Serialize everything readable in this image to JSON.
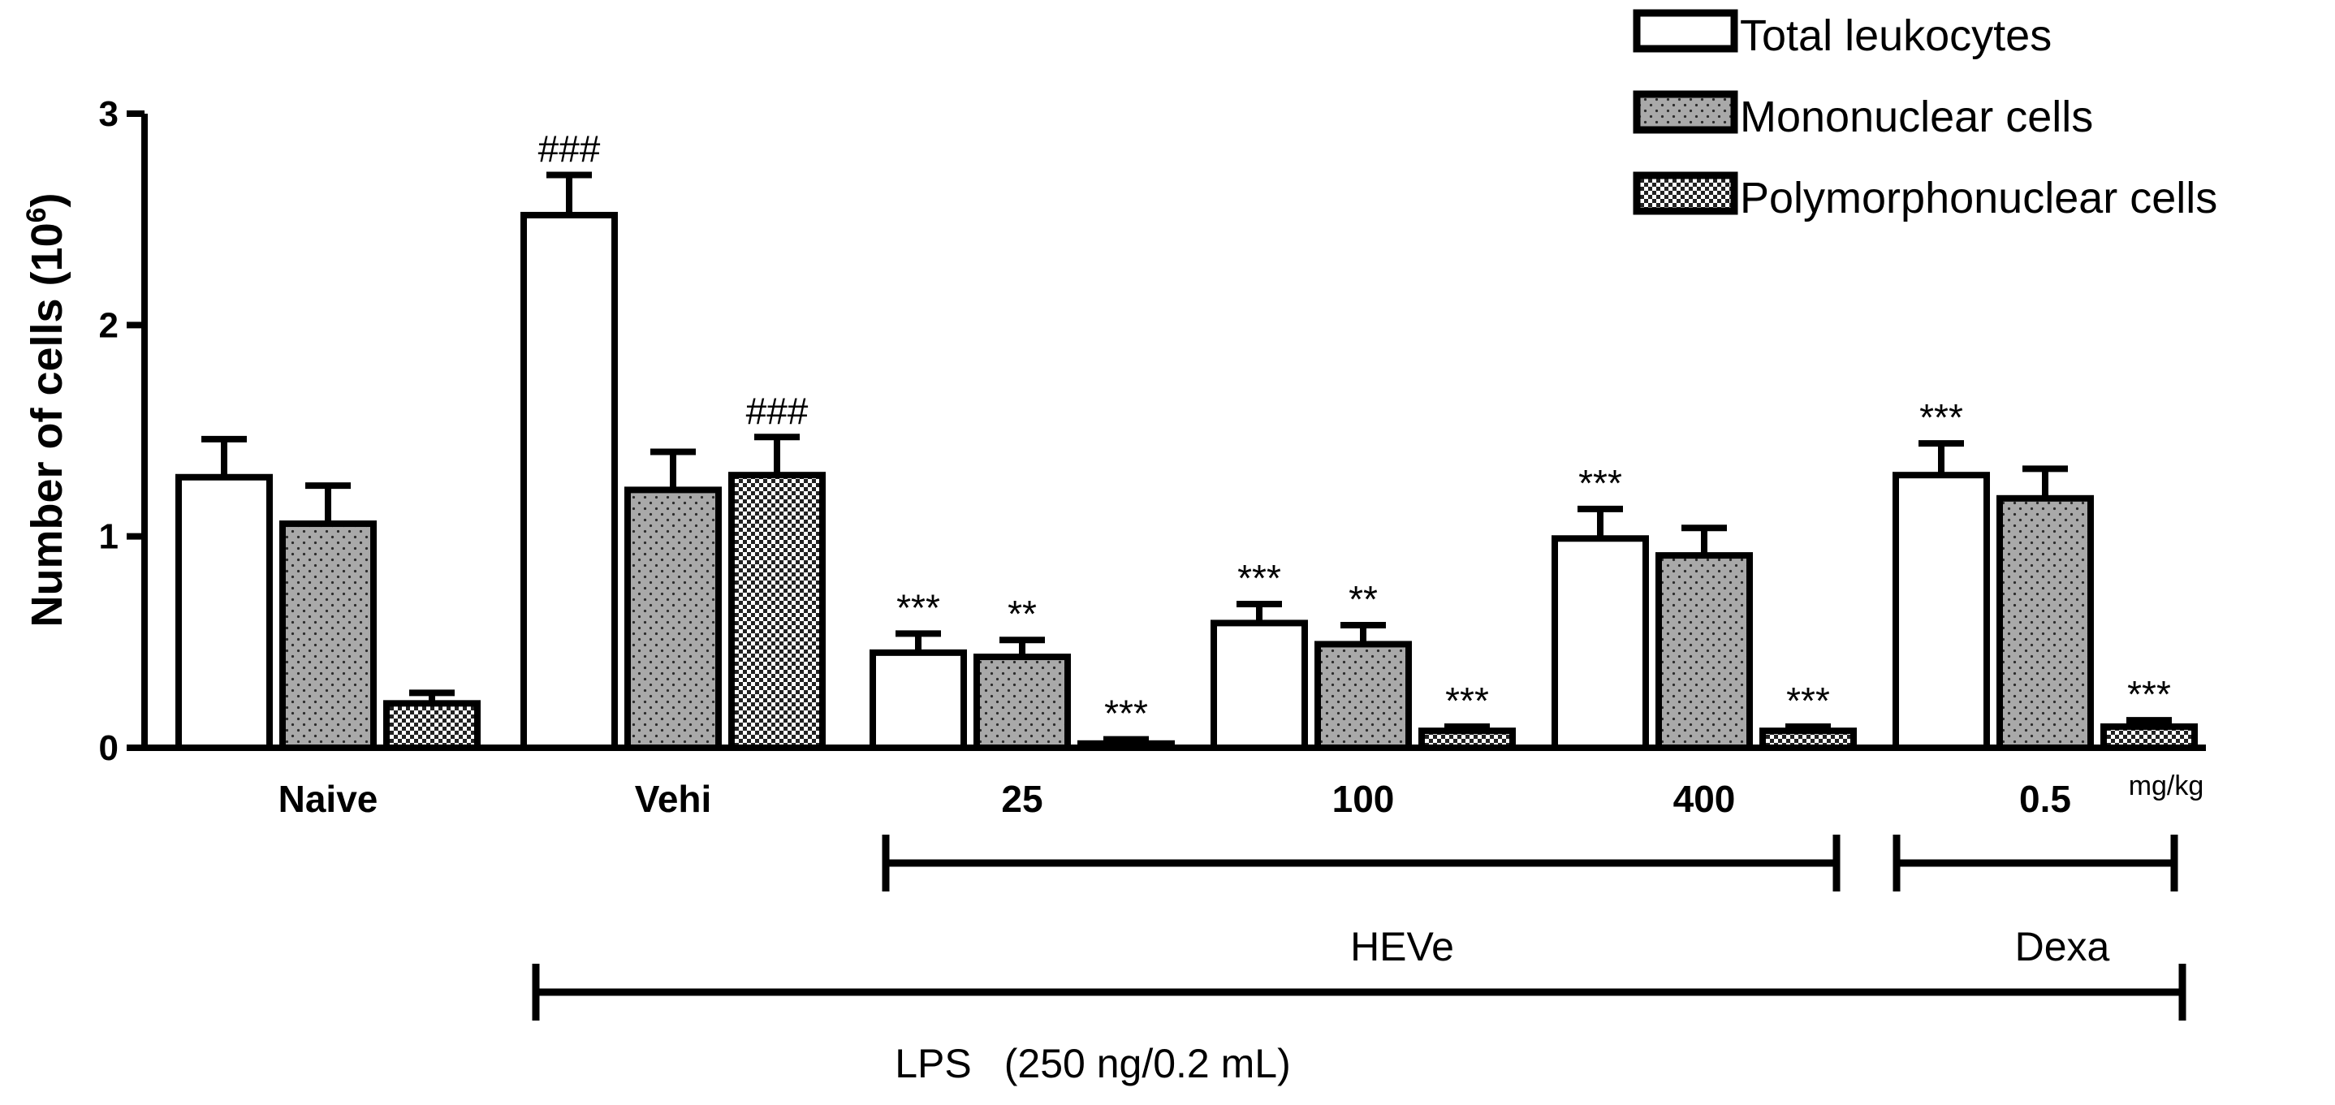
{
  "chart_data": {
    "type": "bar",
    "ylabel": "Number of cells (10",
    "ylabel_exponent": "6",
    "ylabel_close": ")",
    "ylim": [
      0,
      3
    ],
    "yticks": [
      0,
      1,
      2,
      3
    ],
    "categories": [
      "Naive",
      "Vehi",
      "25",
      "100",
      "400",
      "0.5"
    ],
    "unit_label": "mg/kg",
    "series": [
      {
        "name": "Total leukocytes",
        "pattern": "white",
        "values": [
          1.28,
          2.52,
          0.45,
          0.59,
          0.99,
          1.29
        ],
        "errors": [
          0.18,
          0.19,
          0.09,
          0.09,
          0.14,
          0.15
        ],
        "annotations": [
          "",
          "###",
          "***",
          "***",
          "***",
          "***"
        ]
      },
      {
        "name": "Mononuclear cells",
        "pattern": "gray-dots",
        "values": [
          1.06,
          1.22,
          0.43,
          0.49,
          0.91,
          1.18
        ],
        "errors": [
          0.18,
          0.18,
          0.08,
          0.09,
          0.13,
          0.14
        ],
        "annotations": [
          "",
          "",
          "**",
          "**",
          "",
          ""
        ]
      },
      {
        "name": "Polymorphonuclear cells",
        "pattern": "checker",
        "values": [
          0.21,
          1.29,
          0.02,
          0.08,
          0.08,
          0.1
        ],
        "errors": [
          0.05,
          0.18,
          0.02,
          0.02,
          0.02,
          0.03
        ],
        "annotations": [
          "",
          "###",
          "***",
          "***",
          "***",
          "***"
        ]
      }
    ],
    "brackets": {
      "heve": "HEVe",
      "dexa": "Dexa",
      "lps": "LPS",
      "lps_dose": "(250 ng/0.2 mL)"
    },
    "legend_position": "top-right"
  }
}
